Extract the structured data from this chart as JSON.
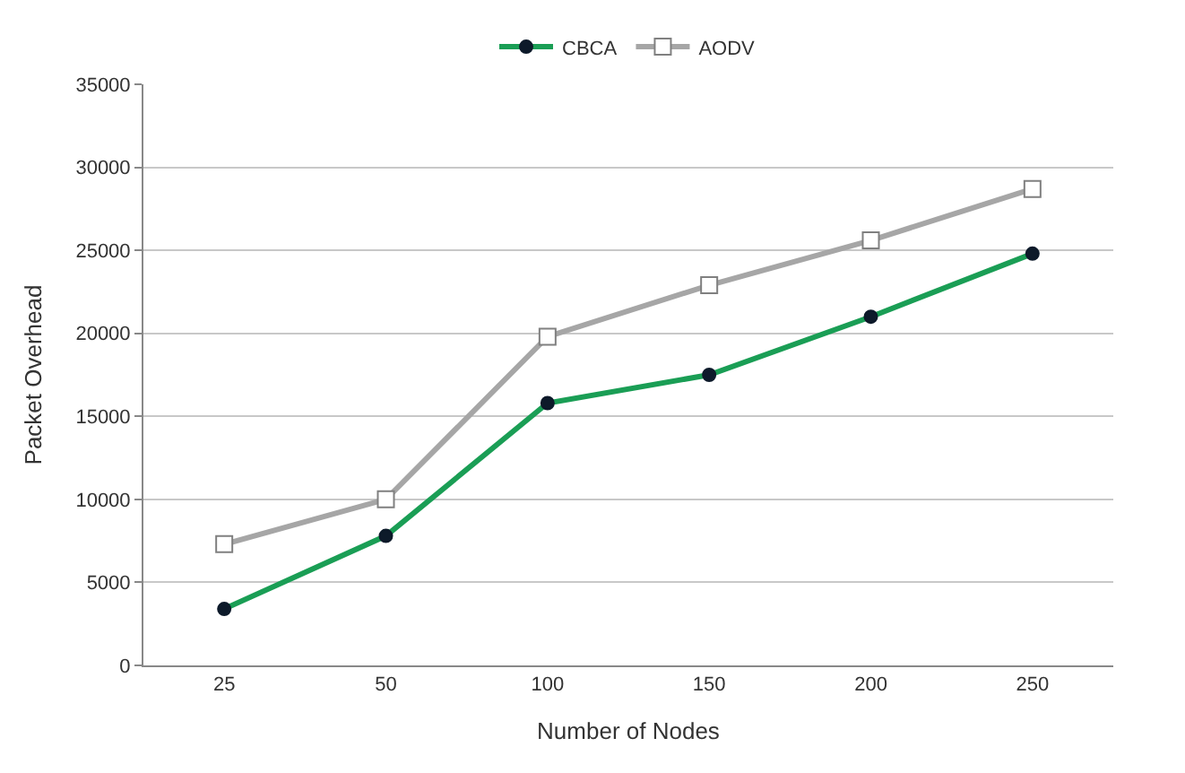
{
  "chart_data": {
    "type": "line",
    "xlabel": "Number of Nodes",
    "ylabel": "Packet Overhead",
    "categories": [
      "25",
      "50",
      "100",
      "150",
      "200",
      "250"
    ],
    "series": [
      {
        "name": "CBCA",
        "color": "#1a9e55",
        "marker": "circle",
        "values": [
          3400,
          7800,
          15800,
          17500,
          21000,
          24800
        ]
      },
      {
        "name": "AODV",
        "color": "#a6a6a6",
        "marker": "square",
        "values": [
          7300,
          10000,
          19800,
          22900,
          25600,
          28700
        ]
      }
    ],
    "ylim": [
      0,
      35000
    ],
    "yticks": [
      0,
      5000,
      10000,
      15000,
      20000,
      25000,
      30000,
      35000
    ],
    "grid": "y",
    "legend": "top",
    "line_style": "solid"
  }
}
